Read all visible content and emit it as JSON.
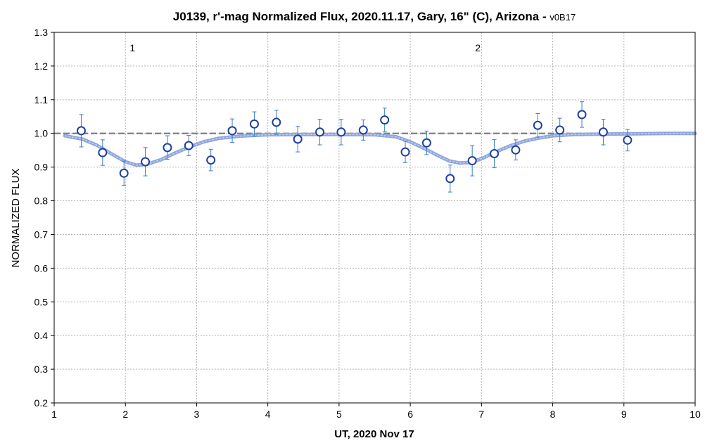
{
  "chart_data": {
    "type": "scatter",
    "title": "J0139, r'-mag Normalized Flux, 2020.11.17, Gary, 16\" (C), Arizona - ",
    "title_suffix": "v0B17",
    "xlabel": "UT, 2020 Nov 17",
    "ylabel": "NORMALIZED FLUX",
    "xlim": [
      1,
      10
    ],
    "ylim": [
      0.2,
      1.3
    ],
    "xticks": [
      1,
      2,
      3,
      4,
      5,
      6,
      7,
      8,
      9,
      10
    ],
    "yticks": [
      "0.2",
      "0.3",
      "0.4",
      "0.5",
      "0.6",
      "0.7",
      "0.8",
      "0.9",
      "1.0",
      "1.1",
      "1.2",
      "1.3"
    ],
    "grid": true,
    "reference_line": {
      "y": 1.0,
      "style": "dashed",
      "color": "#7f7f7f"
    },
    "colors": {
      "marker_edge": "#1f3fa0",
      "errorbar": "#3a7bc8",
      "model": "#8ea6dc",
      "model_center": "#c5d0ee"
    },
    "annotations": [
      {
        "text": "1",
        "x": 2.0
      },
      {
        "text": "2",
        "x": 6.85
      }
    ],
    "series": [
      {
        "x": [
          1.38,
          1.68,
          1.98,
          2.28,
          2.59,
          2.89,
          3.2,
          3.5,
          3.81,
          4.12,
          4.42,
          4.73,
          5.03,
          5.34,
          5.64,
          5.93,
          6.23,
          6.56,
          6.87,
          7.18,
          7.48,
          7.79,
          8.1,
          8.41,
          8.71,
          9.05
        ],
        "y": [
          1.008,
          0.943,
          0.882,
          0.916,
          0.958,
          0.964,
          0.921,
          1.008,
          1.028,
          1.033,
          0.983,
          1.004,
          1.004,
          1.01,
          1.04,
          0.945,
          0.972,
          0.866,
          0.919,
          0.94,
          0.951,
          1.024,
          1.01,
          1.056,
          1.004,
          0.98
        ],
        "err": [
          0.048,
          0.038,
          0.036,
          0.042,
          0.035,
          0.03,
          0.032,
          0.035,
          0.036,
          0.036,
          0.038,
          0.038,
          0.038,
          0.03,
          0.035,
          0.032,
          0.035,
          0.04,
          0.045,
          0.042,
          0.03,
          0.035,
          0.035,
          0.038,
          0.038,
          0.032
        ]
      },
      {
        "type": "line",
        "x": [
          1.15,
          1.4,
          1.6,
          1.8,
          2.0,
          2.15,
          2.3,
          2.5,
          2.7,
          2.9,
          3.1,
          3.3,
          3.6,
          4.0,
          4.5,
          5.0,
          5.5,
          5.8,
          6.0,
          6.2,
          6.4,
          6.55,
          6.7,
          6.85,
          7.0,
          7.2,
          7.4,
          7.6,
          7.8,
          8.0,
          8.3,
          8.7,
          9.2,
          9.6,
          10.0
        ],
        "y": [
          0.993,
          0.983,
          0.965,
          0.94,
          0.916,
          0.906,
          0.908,
          0.922,
          0.942,
          0.96,
          0.975,
          0.985,
          0.992,
          0.996,
          0.997,
          0.997,
          0.996,
          0.99,
          0.975,
          0.955,
          0.933,
          0.918,
          0.912,
          0.914,
          0.925,
          0.945,
          0.963,
          0.977,
          0.986,
          0.993,
          0.997,
          0.998,
          0.999,
          1.0,
          1.0
        ]
      }
    ]
  }
}
